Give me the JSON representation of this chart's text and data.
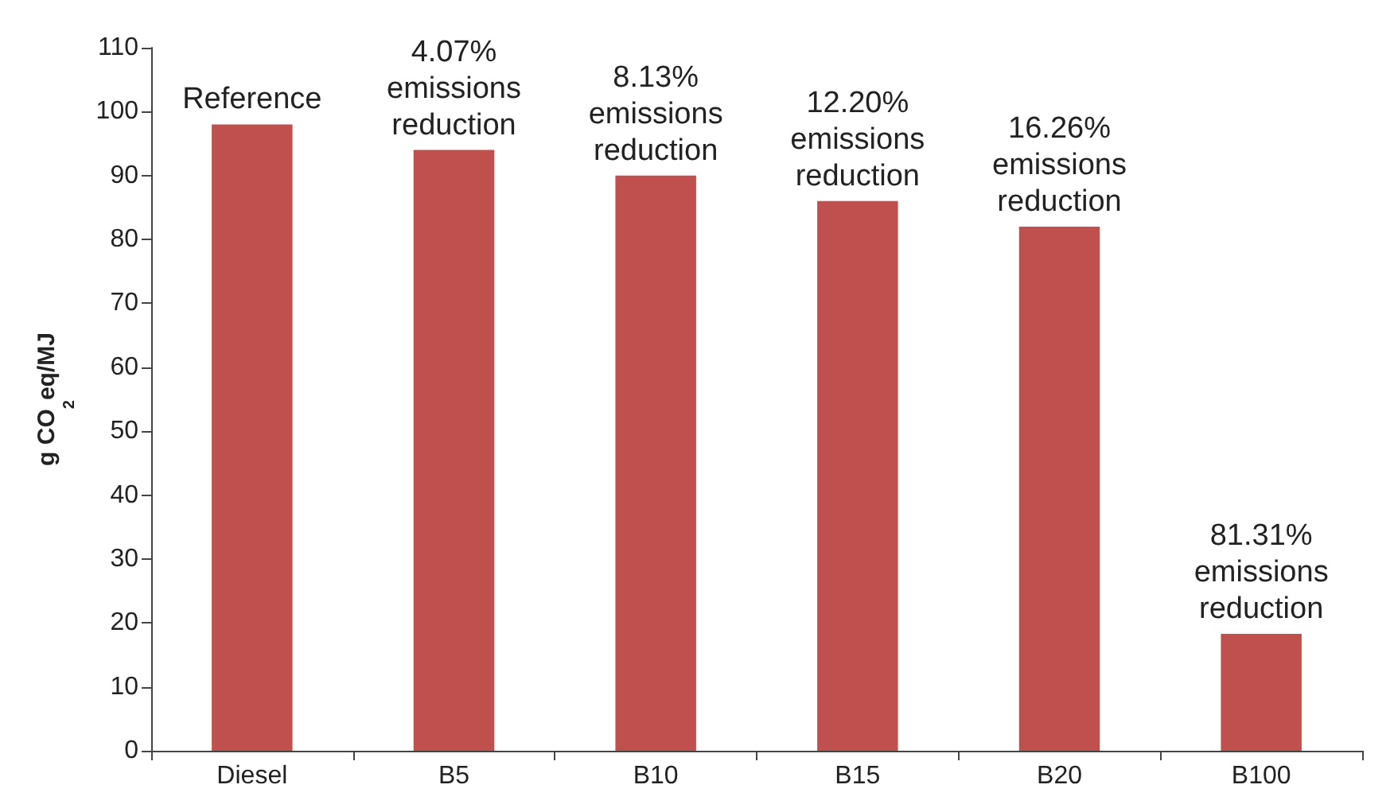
{
  "chart_data": {
    "type": "bar",
    "ylabel": "g CO$_{2}$eq/MJ",
    "categories": [
      "Diesel",
      "B5",
      "B10",
      "B15",
      "B20",
      "B100"
    ],
    "values": [
      98,
      94,
      90,
      86,
      82,
      18.3
    ],
    "color": "#c0504d",
    "ylim": [
      0,
      110
    ],
    "yticks": [
      0,
      10,
      20,
      30,
      40,
      50,
      60,
      70,
      80,
      90,
      100,
      110
    ],
    "grid": false,
    "annotations": [
      {
        "text": "Reference",
        "x": "Diesel",
        "y": 98
      },
      {
        "text": "4.07% emissions reduction",
        "x": "B5",
        "y": 94
      },
      {
        "text": "8.13% emissions reduction",
        "x": "B10",
        "y": 90
      },
      {
        "text": "12.20% emissions reduction",
        "x": "B15",
        "y": 86
      },
      {
        "text": "16.26% emissions reduction",
        "x": "B20",
        "y": 82
      },
      {
        "text": "81.31% emissions reduction",
        "x": "B100",
        "y": 18.3
      }
    ]
  }
}
